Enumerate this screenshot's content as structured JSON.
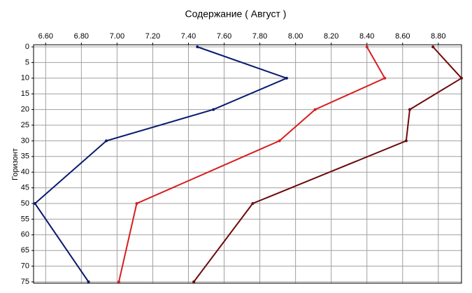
{
  "chart_data": {
    "type": "line",
    "title": "Содержание    ( Август )",
    "y_label": "Горизонт",
    "y": [
      0,
      10,
      20,
      30,
      50,
      75
    ],
    "series": [
      {
        "color": "#0a1a6e",
        "values": [
          7.45,
          7.95,
          7.54,
          6.94,
          6.54,
          6.84
        ]
      },
      {
        "color": "#d81e1e",
        "values": [
          8.4,
          8.5,
          8.11,
          7.91,
          7.11,
          7.01
        ]
      },
      {
        "color": "#6e0a0a",
        "values": [
          8.77,
          8.93,
          8.64,
          8.62,
          7.76,
          7.43
        ]
      }
    ],
    "xlim": [
      6.54,
      8.93
    ],
    "xticks": [
      {
        "value": 6.6,
        "label": "6.60"
      },
      {
        "value": 6.8,
        "label": "6.80"
      },
      {
        "value": 7.0,
        "label": "7.00"
      },
      {
        "value": 7.2,
        "label": "7.20"
      },
      {
        "value": 7.4,
        "label": "7.40"
      },
      {
        "value": 7.6,
        "label": "7.60"
      },
      {
        "value": 7.8,
        "label": "7.80"
      },
      {
        "value": 8.0,
        "label": "8.00"
      },
      {
        "value": 8.2,
        "label": "8.20"
      },
      {
        "value": 8.4,
        "label": "8.40"
      },
      {
        "value": 8.6,
        "label": "8.60"
      },
      {
        "value": 8.8,
        "label": "8.80"
      }
    ],
    "ylim": [
      0,
      75
    ],
    "y_inverted": true,
    "yticks": [
      0,
      5,
      10,
      15,
      20,
      25,
      30,
      35,
      40,
      45,
      50,
      55,
      60,
      65,
      70,
      75
    ],
    "grid": true
  }
}
